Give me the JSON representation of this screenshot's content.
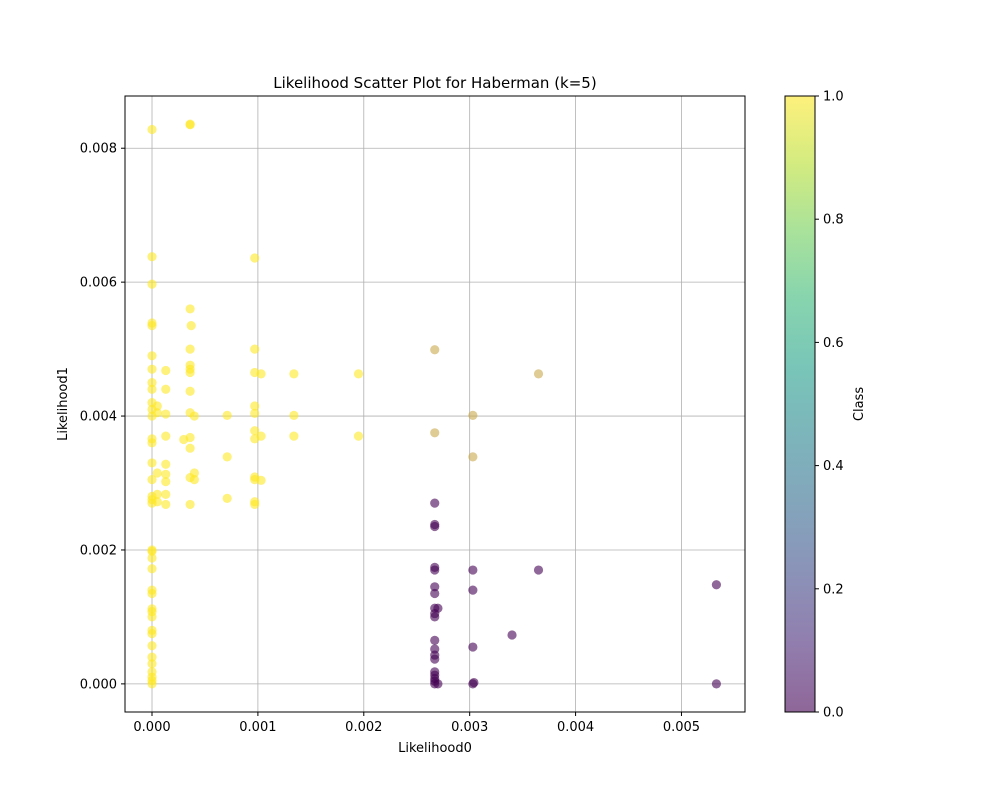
{
  "chart_data": {
    "type": "scatter",
    "title": "Likelihood Scatter Plot for Haberman (k=5)",
    "xlabel": "Likelihood0",
    "ylabel": "Likelihood1",
    "xlim": [
      -0.000255,
      0.0056
    ],
    "ylim": [
      -0.00042,
      0.00878
    ],
    "xticks": [
      0.0,
      0.001,
      0.002,
      0.003,
      0.004,
      0.005
    ],
    "xtick_labels": [
      "0.000",
      "0.001",
      "0.002",
      "0.003",
      "0.004",
      "0.005"
    ],
    "yticks": [
      0.0,
      0.002,
      0.004,
      0.006,
      0.008
    ],
    "ytick_labels": [
      "0.000",
      "0.002",
      "0.004",
      "0.006",
      "0.008"
    ],
    "grid": true,
    "point_alpha": 0.6,
    "colormap": "viridis",
    "class_colors": {
      "0": "#440154",
      "1": "#fde725"
    },
    "colorbar": {
      "label": "Class",
      "range": [
        0.0,
        1.0
      ],
      "ticks": [
        0.0,
        0.2,
        0.4,
        0.6,
        0.8,
        1.0
      ],
      "tick_labels": [
        "0.0",
        "0.2",
        "0.4",
        "0.6",
        "0.8",
        "1.0"
      ],
      "stops": [
        "#440154",
        "#482878",
        "#3e4989",
        "#31688e",
        "#26828e",
        "#1f9e89",
        "#35b779",
        "#6ece58",
        "#b5de2b",
        "#fde725"
      ]
    },
    "series": [
      {
        "class": 1,
        "points": [
          [
            0.0,
            0.00828
          ],
          [
            0.00036,
            0.00835
          ],
          [
            0.00036,
            0.00836
          ],
          [
            0.0,
            0.00638
          ],
          [
            0.0,
            0.00597
          ],
          [
            0.00097,
            0.00636
          ],
          [
            0.0,
            0.00539
          ],
          [
            0.0,
            0.00535
          ],
          [
            0.00036,
            0.0056
          ],
          [
            0.00037,
            0.00535
          ],
          [
            0.0,
            0.0049
          ],
          [
            0.0,
            0.0047
          ],
          [
            0.0,
            0.0045
          ],
          [
            0.0,
            0.0044
          ],
          [
            0.0,
            0.0042
          ],
          [
            0.0,
            0.0041
          ],
          [
            0.0,
            0.004
          ],
          [
            0.0,
            0.00366
          ],
          [
            0.0,
            0.0036
          ],
          [
            0.0,
            0.0033
          ],
          [
            0.0,
            0.00305
          ],
          [
            0.0,
            0.0028
          ],
          [
            0.0,
            0.00275
          ],
          [
            0.0,
            0.0027
          ],
          [
            0.0,
            0.002
          ],
          [
            0.0,
            0.00198
          ],
          [
            0.0,
            0.00188
          ],
          [
            0.0,
            0.00172
          ],
          [
            0.0,
            0.0014
          ],
          [
            0.0,
            0.00135
          ],
          [
            0.0,
            0.00112
          ],
          [
            0.0,
            0.00108
          ],
          [
            0.0,
            0.001
          ],
          [
            0.0,
            0.0008
          ],
          [
            0.0,
            0.00075
          ],
          [
            0.0,
            0.00057
          ],
          [
            0.0,
            0.0004
          ],
          [
            0.0,
            0.0003
          ],
          [
            0.0,
            0.00018
          ],
          [
            0.0,
            0.0001
          ],
          [
            0.0,
            5e-05
          ],
          [
            0.0,
            0.0
          ],
          [
            5e-05,
            0.00415
          ],
          [
            5e-05,
            0.00405
          ],
          [
            5e-05,
            0.00315
          ],
          [
            5e-05,
            0.00283
          ],
          [
            5e-05,
            0.00272
          ],
          [
            0.00013,
            0.00468
          ],
          [
            0.00013,
            0.0044
          ],
          [
            0.00013,
            0.00403
          ],
          [
            0.00013,
            0.0037
          ],
          [
            0.00013,
            0.00328
          ],
          [
            0.00013,
            0.00313
          ],
          [
            0.00013,
            0.00302
          ],
          [
            0.00013,
            0.00283
          ],
          [
            0.00013,
            0.00268
          ],
          [
            0.0003,
            0.00365
          ],
          [
            0.00036,
            0.005
          ],
          [
            0.00036,
            0.00476
          ],
          [
            0.00036,
            0.0047
          ],
          [
            0.00036,
            0.00465
          ],
          [
            0.00036,
            0.00437
          ],
          [
            0.00036,
            0.00405
          ],
          [
            0.00036,
            0.00368
          ],
          [
            0.00036,
            0.00352
          ],
          [
            0.00036,
            0.00308
          ],
          [
            0.00036,
            0.00268
          ],
          [
            0.0004,
            0.004
          ],
          [
            0.0004,
            0.00315
          ],
          [
            0.0004,
            0.00305
          ],
          [
            0.00071,
            0.00401
          ],
          [
            0.00071,
            0.00339
          ],
          [
            0.00071,
            0.00277
          ],
          [
            0.00097,
            0.005
          ],
          [
            0.00097,
            0.00465
          ],
          [
            0.00097,
            0.00415
          ],
          [
            0.00097,
            0.00404
          ],
          [
            0.00097,
            0.00378
          ],
          [
            0.00097,
            0.00366
          ],
          [
            0.00097,
            0.00309
          ],
          [
            0.00097,
            0.00305
          ],
          [
            0.00097,
            0.00272
          ],
          [
            0.00097,
            0.00268
          ],
          [
            0.00103,
            0.00463
          ],
          [
            0.00103,
            0.0037
          ],
          [
            0.00103,
            0.00304
          ],
          [
            0.00134,
            0.00463
          ],
          [
            0.00134,
            0.00401
          ],
          [
            0.00134,
            0.0037
          ],
          [
            0.00195,
            0.00463
          ],
          [
            0.00195,
            0.0037
          ]
        ]
      },
      {
        "class": 0,
        "points": [
          [
            0.00267,
            0.0027
          ],
          [
            0.00267,
            0.00238
          ],
          [
            0.00267,
            0.00235
          ],
          [
            0.00267,
            0.00174
          ],
          [
            0.00267,
            0.0017
          ],
          [
            0.00267,
            0.00145
          ],
          [
            0.00267,
            0.00135
          ],
          [
            0.00267,
            0.00113
          ],
          [
            0.00267,
            0.00105
          ],
          [
            0.00267,
            0.001
          ],
          [
            0.00267,
            0.00065
          ],
          [
            0.00267,
            0.00052
          ],
          [
            0.00267,
            0.00043
          ],
          [
            0.00267,
            0.00037
          ],
          [
            0.00267,
            0.00018
          ],
          [
            0.00267,
            0.00013
          ],
          [
            0.00267,
            8e-05
          ],
          [
            0.00267,
            4e-05
          ],
          [
            0.00267,
            0.0
          ],
          [
            0.0027,
            0.00113
          ],
          [
            0.0027,
            0.0
          ],
          [
            0.00303,
            0.0017
          ],
          [
            0.00303,
            0.0014
          ],
          [
            0.00303,
            0.00055
          ],
          [
            0.00303,
            0.0
          ],
          [
            0.00304,
            2e-05
          ],
          [
            0.0034,
            0.00073
          ],
          [
            0.00365,
            0.0017
          ],
          [
            0.00533,
            0.00148
          ],
          [
            0.00533,
            0.0
          ]
        ]
      },
      {
        "class": "mixed",
        "points": [
          [
            0.00267,
            0.00499
          ],
          [
            0.00267,
            0.00375
          ],
          [
            0.00303,
            0.00401
          ],
          [
            0.00303,
            0.00339
          ],
          [
            0.00365,
            0.00463
          ]
        ]
      }
    ],
    "mixed_color": "#c9a84c"
  }
}
